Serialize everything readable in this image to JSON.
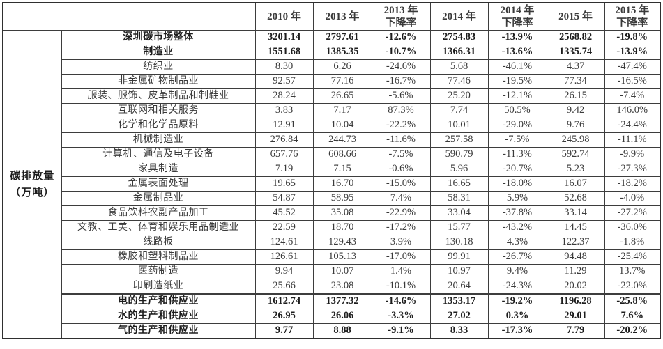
{
  "table": {
    "unit_label": {
      "line1": "碳排放量",
      "line2": "（万吨）"
    },
    "columns": [
      {
        "line1": "2010 年",
        "line2": ""
      },
      {
        "line1": "2013 年",
        "line2": ""
      },
      {
        "line1": "2013 年",
        "line2": "下降率"
      },
      {
        "line1": "2014 年",
        "line2": ""
      },
      {
        "line1": "2014 年",
        "line2": "下降率"
      },
      {
        "line1": "2015 年",
        "line2": ""
      },
      {
        "line1": "2015 年",
        "line2": "下降率"
      }
    ],
    "rows": [
      {
        "label": "深圳碳市场整体",
        "bold": true,
        "heavy_top": false,
        "values": [
          "3201.14",
          "2797.61",
          "-12.6%",
          "2754.83",
          "-13.9%",
          "2568.82",
          "-19.8%"
        ]
      },
      {
        "label": "制造业",
        "bold": true,
        "heavy_top": false,
        "values": [
          "1551.68",
          "1385.35",
          "-10.7%",
          "1366.31",
          "-13.6%",
          "1335.74",
          "-13.9%"
        ]
      },
      {
        "label": "纺织业",
        "bold": false,
        "heavy_top": false,
        "values": [
          "8.30",
          "6.26",
          "-24.6%",
          "5.68",
          "-46.1%",
          "4.37",
          "-47.4%"
        ]
      },
      {
        "label": "非金属矿物制品业",
        "bold": false,
        "heavy_top": false,
        "values": [
          "92.57",
          "77.16",
          "-16.7%",
          "77.46",
          "-19.5%",
          "77.34",
          "-16.5%"
        ]
      },
      {
        "label": "服装、服饰、皮革制品和制鞋业",
        "bold": false,
        "heavy_top": false,
        "values": [
          "28.24",
          "26.65",
          "-5.6%",
          "25.20",
          "-12.1%",
          "26.15",
          "-7.4%"
        ]
      },
      {
        "label": "互联网和相关服务",
        "bold": false,
        "heavy_top": false,
        "values": [
          "3.83",
          "7.17",
          "87.3%",
          "7.74",
          "50.5%",
          "9.42",
          "146.0%"
        ]
      },
      {
        "label": "化学和化学品原料",
        "bold": false,
        "heavy_top": false,
        "values": [
          "12.91",
          "10.04",
          "-22.2%",
          "10.01",
          "-29.0%",
          "9.76",
          "-24.4%"
        ]
      },
      {
        "label": "机械制造业",
        "bold": false,
        "heavy_top": false,
        "values": [
          "276.84",
          "244.73",
          "-11.6%",
          "257.58",
          "-7.5%",
          "245.98",
          "-11.1%"
        ]
      },
      {
        "label": "计算机、通信及电子设备",
        "bold": false,
        "heavy_top": false,
        "values": [
          "657.76",
          "608.66",
          "-7.5%",
          "590.79",
          "-11.3%",
          "592.74",
          "-9.9%"
        ]
      },
      {
        "label": "家具制造",
        "bold": false,
        "heavy_top": false,
        "values": [
          "7.19",
          "7.15",
          "-0.6%",
          "5.96",
          "-20.7%",
          "5.23",
          "-27.3%"
        ]
      },
      {
        "label": "金属表面处理",
        "bold": false,
        "heavy_top": false,
        "values": [
          "19.65",
          "16.70",
          "-15.0%",
          "16.65",
          "-18.0%",
          "16.07",
          "-18.2%"
        ]
      },
      {
        "label": "金属制品业",
        "bold": false,
        "heavy_top": false,
        "values": [
          "54.87",
          "58.95",
          "7.4%",
          "58.31",
          "5.9%",
          "52.68",
          "-4.0%"
        ]
      },
      {
        "label": "食品饮料农副产品加工",
        "bold": false,
        "heavy_top": false,
        "values": [
          "45.52",
          "35.08",
          "-22.9%",
          "33.04",
          "-37.8%",
          "33.14",
          "-27.2%"
        ]
      },
      {
        "label": "文教、工美、体育和娱乐用品制造业",
        "bold": false,
        "heavy_top": false,
        "values": [
          "22.59",
          "18.70",
          "-17.2%",
          "15.77",
          "-43.2%",
          "14.45",
          "-36.0%"
        ]
      },
      {
        "label": "线路板",
        "bold": false,
        "heavy_top": false,
        "values": [
          "124.61",
          "129.43",
          "3.9%",
          "130.18",
          "4.3%",
          "122.37",
          "-1.8%"
        ]
      },
      {
        "label": "橡胶和塑料制品业",
        "bold": false,
        "heavy_top": false,
        "values": [
          "126.61",
          "105.13",
          "-17.0%",
          "99.91",
          "-26.7%",
          "94.48",
          "-25.4%"
        ]
      },
      {
        "label": "医药制造",
        "bold": false,
        "heavy_top": false,
        "values": [
          "9.94",
          "10.07",
          "1.4%",
          "10.97",
          "9.4%",
          "11.29",
          "13.7%"
        ]
      },
      {
        "label": "印刷造纸业",
        "bold": false,
        "heavy_top": false,
        "values": [
          "25.66",
          "23.08",
          "-10.1%",
          "20.64",
          "-24.3%",
          "20.02",
          "-22.0%"
        ]
      },
      {
        "label": "电的生产和供应业",
        "bold": true,
        "heavy_top": true,
        "values": [
          "1612.74",
          "1377.32",
          "-14.6%",
          "1353.17",
          "-19.2%",
          "1196.28",
          "-25.8%"
        ]
      },
      {
        "label": "水的生产和供应业",
        "bold": true,
        "heavy_top": false,
        "values": [
          "26.95",
          "26.06",
          "-3.3%",
          "27.02",
          "0.3%",
          "29.01",
          "7.6%"
        ]
      },
      {
        "label": "气的生产和供应业",
        "bold": true,
        "heavy_top": false,
        "values": [
          "9.77",
          "8.88",
          "-9.1%",
          "8.33",
          "-17.3%",
          "7.79",
          "-20.2%"
        ]
      }
    ]
  }
}
